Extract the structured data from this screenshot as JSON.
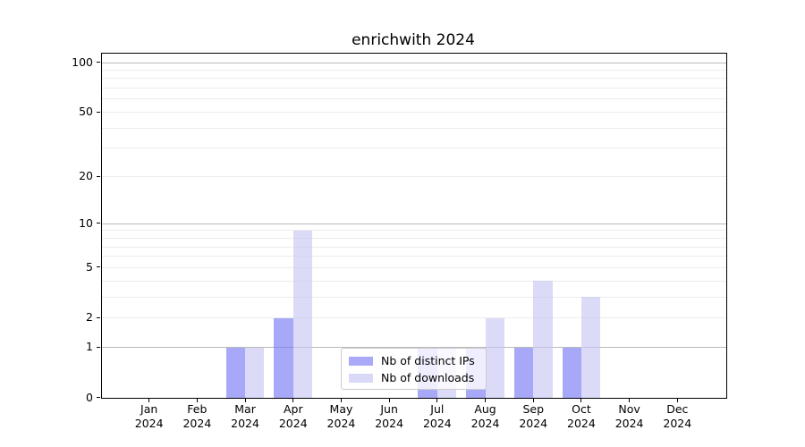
{
  "figure": {
    "title": "enrichwith 2024"
  },
  "chart_data": {
    "type": "bar",
    "title": "enrichwith 2024",
    "x_categories": [
      {
        "month": "Jan",
        "year": "2024"
      },
      {
        "month": "Feb",
        "year": "2024"
      },
      {
        "month": "Mar",
        "year": "2024"
      },
      {
        "month": "Apr",
        "year": "2024"
      },
      {
        "month": "May",
        "year": "2024"
      },
      {
        "month": "Jun",
        "year": "2024"
      },
      {
        "month": "Jul",
        "year": "2024"
      },
      {
        "month": "Aug",
        "year": "2024"
      },
      {
        "month": "Sep",
        "year": "2024"
      },
      {
        "month": "Oct",
        "year": "2024"
      },
      {
        "month": "Nov",
        "year": "2024"
      },
      {
        "month": "Dec",
        "year": "2024"
      }
    ],
    "series": [
      {
        "name": "Nb of distinct IPs",
        "fill": "rgba(122,122,245,0.65)",
        "legend_color": "#a9a9f7",
        "values": [
          0,
          0,
          1,
          2,
          0,
          0,
          1,
          1,
          1,
          1,
          0,
          0
        ]
      },
      {
        "name": "Nb of downloads",
        "fill": "rgba(200,200,245,0.65)",
        "legend_color": "#d9d9f7",
        "values": [
          0,
          0,
          1,
          9,
          0,
          0,
          1,
          2,
          4,
          3,
          0,
          0
        ]
      }
    ],
    "y_axis": {
      "scale": "log1p",
      "tick_values": [
        0,
        1,
        2,
        5,
        10,
        20,
        50,
        100
      ],
      "tick_labels": [
        "0",
        "1",
        "2",
        "5",
        "10",
        "20",
        "50",
        "100"
      ],
      "approx_top_value": 114
    },
    "gridlines": {
      "emphasized_values": [
        1,
        10,
        100
      ],
      "light_values": [
        2,
        3,
        4,
        5,
        6,
        7,
        8,
        9,
        20,
        30,
        40,
        50,
        60,
        70,
        80,
        90
      ],
      "emphasized_color": "#b9b9b9",
      "light_color": "#ececec"
    },
    "legend": {
      "position": "lower center",
      "entries": [
        "Nb of distinct IPs",
        "Nb of downloads"
      ]
    },
    "grid": true
  }
}
